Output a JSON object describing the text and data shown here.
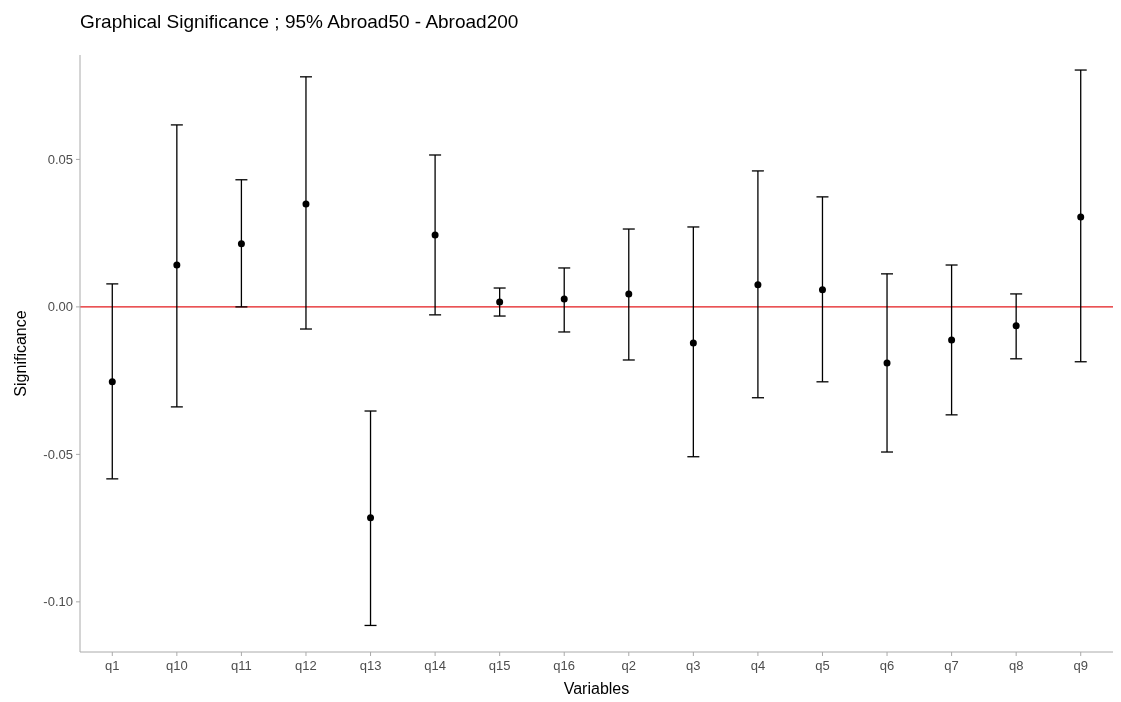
{
  "chart_data": {
    "type": "scatter",
    "title": "Graphical Significance ; 95% Abroad50 - Abroad200",
    "xlabel": "Variables",
    "ylabel": "Significance",
    "categories": [
      "q1",
      "q10",
      "q11",
      "q12",
      "q13",
      "q14",
      "q15",
      "q16",
      "q2",
      "q3",
      "q4",
      "q5",
      "q6",
      "q7",
      "q8",
      "q9"
    ],
    "values": [
      -0.0254,
      0.0142,
      0.0214,
      0.0349,
      -0.0715,
      0.0244,
      0.0017,
      0.0027,
      0.0044,
      -0.0122,
      0.0075,
      0.0058,
      -0.019,
      -0.0112,
      -0.0064,
      0.0305
    ],
    "errors": [
      [
        -0.0583,
        0.0078
      ],
      [
        -0.0339,
        0.0617
      ],
      [
        0.0,
        0.0431
      ],
      [
        -0.0075,
        0.078
      ],
      [
        -0.108,
        -0.0353
      ],
      [
        -0.0027,
        0.0515
      ],
      [
        -0.0031,
        0.0064
      ],
      [
        -0.0085,
        0.0132
      ],
      [
        -0.018,
        0.0264
      ],
      [
        -0.0508,
        0.0271
      ],
      [
        -0.0308,
        0.0461
      ],
      [
        -0.0254,
        0.0373
      ],
      [
        -0.0492,
        0.0112
      ],
      [
        -0.0366,
        0.0142
      ],
      [
        -0.0176,
        0.0044
      ],
      [
        -0.0186,
        0.0803
      ]
    ],
    "color": "#000000",
    "marker": "circle",
    "ylim": [
      -0.117,
      0.0854
    ],
    "yticks": [
      {
        "value": -0.1,
        "label": "-0.10"
      },
      {
        "value": -0.05,
        "label": "-0.05"
      },
      {
        "value": 0,
        "label": "0.00"
      },
      {
        "value": 0.05,
        "label": "0.05"
      }
    ],
    "ref_lines": [
      {
        "axis": "y",
        "value": 0,
        "color": "#e31a1c"
      }
    ],
    "grid": false
  }
}
